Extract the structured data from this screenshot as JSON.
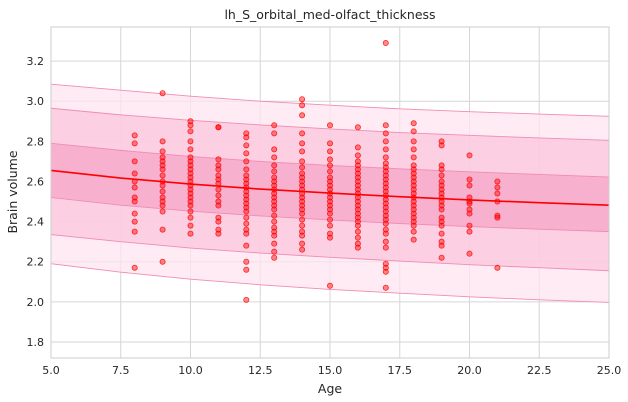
{
  "chart_data": {
    "type": "scatter",
    "title": "lh_S_orbital_med-olfact_thickness",
    "xlabel": "Age",
    "ylabel": "Brain volume",
    "xlim": [
      5.0,
      25.0
    ],
    "ylim": [
      1.72,
      3.37
    ],
    "x_ticks": [
      5.0,
      7.5,
      10.0,
      12.5,
      15.0,
      17.5,
      20.0,
      22.5,
      25.0
    ],
    "x_tick_labels": [
      "5.0",
      "7.5",
      "10.0",
      "12.5",
      "15.0",
      "17.5",
      "20.0",
      "22.5",
      "25.0"
    ],
    "y_ticks": [
      1.8,
      2.0,
      2.2,
      2.4,
      2.6,
      2.8,
      3.0,
      3.2
    ],
    "y_tick_labels": [
      "1.8",
      "2.0",
      "2.2",
      "2.4",
      "2.6",
      "2.8",
      "3.0",
      "3.2"
    ],
    "grid": true,
    "colors": {
      "points": "#ff0000",
      "fit_line": "#ff0000",
      "band_inner": "#f7a6c8",
      "band_middle": "#fbc6dc",
      "band_outer": "#fde4ef",
      "band_edge": "#f08cb4",
      "grid": "#d6d6d6"
    },
    "fit_line": {
      "x": [
        5,
        7.5,
        10,
        12.5,
        15,
        17.5,
        20,
        22.5,
        25
      ],
      "y": [
        2.655,
        2.617,
        2.587,
        2.562,
        2.542,
        2.524,
        2.508,
        2.494,
        2.482
      ]
    },
    "bands": [
      {
        "level": "outer",
        "x": [
          5,
          7.5,
          10,
          12.5,
          15,
          17.5,
          20,
          22.5,
          25
        ],
        "lower": [
          2.19,
          2.148,
          2.113,
          2.085,
          2.062,
          2.043,
          2.025,
          2.01,
          1.997
        ],
        "upper": [
          3.085,
          3.055,
          3.025,
          3.0,
          2.98,
          2.962,
          2.948,
          2.936,
          2.925
        ]
      },
      {
        "level": "middle",
        "x": [
          5,
          7.5,
          10,
          12.5,
          15,
          17.5,
          20,
          22.5,
          25
        ],
        "lower": [
          2.335,
          2.3,
          2.268,
          2.243,
          2.222,
          2.203,
          2.185,
          2.17,
          2.155
        ],
        "upper": [
          2.965,
          2.932,
          2.905,
          2.882,
          2.862,
          2.844,
          2.83,
          2.817,
          2.805
        ]
      },
      {
        "level": "inner",
        "x": [
          5,
          7.5,
          10,
          12.5,
          15,
          17.5,
          20,
          22.5,
          25
        ],
        "lower": [
          2.52,
          2.482,
          2.452,
          2.428,
          2.408,
          2.39,
          2.375,
          2.362,
          2.35
        ],
        "upper": [
          2.79,
          2.755,
          2.725,
          2.7,
          2.68,
          2.663,
          2.648,
          2.635,
          2.622
        ]
      }
    ],
    "points": [
      [
        8,
        2.83
      ],
      [
        8,
        2.79
      ],
      [
        8,
        2.7
      ],
      [
        8,
        2.64
      ],
      [
        8,
        2.6
      ],
      [
        8,
        2.57
      ],
      [
        8,
        2.52
      ],
      [
        8,
        2.5
      ],
      [
        8,
        2.44
      ],
      [
        8,
        2.4
      ],
      [
        8,
        2.35
      ],
      [
        8,
        2.17
      ],
      [
        9,
        3.04
      ],
      [
        9,
        2.8
      ],
      [
        9,
        2.75
      ],
      [
        9,
        2.72
      ],
      [
        9,
        2.7
      ],
      [
        9,
        2.68
      ],
      [
        9,
        2.66
      ],
      [
        9,
        2.63
      ],
      [
        9,
        2.6
      ],
      [
        9,
        2.58
      ],
      [
        9,
        2.55
      ],
      [
        9,
        2.52
      ],
      [
        9,
        2.5
      ],
      [
        9,
        2.48
      ],
      [
        9,
        2.45
      ],
      [
        9,
        2.36
      ],
      [
        9,
        2.2
      ],
      [
        10,
        2.9
      ],
      [
        10,
        2.88
      ],
      [
        10,
        2.85
      ],
      [
        10,
        2.8
      ],
      [
        10,
        2.76
      ],
      [
        10,
        2.72
      ],
      [
        10,
        2.7
      ],
      [
        10,
        2.68
      ],
      [
        10,
        2.66
      ],
      [
        10,
        2.64
      ],
      [
        10,
        2.62
      ],
      [
        10,
        2.6
      ],
      [
        10,
        2.58
      ],
      [
        10,
        2.56
      ],
      [
        10,
        2.54
      ],
      [
        10,
        2.52
      ],
      [
        10,
        2.5
      ],
      [
        10,
        2.48
      ],
      [
        10,
        2.45
      ],
      [
        10,
        2.42
      ],
      [
        10,
        2.38
      ],
      [
        10,
        2.34
      ],
      [
        11,
        2.87
      ],
      [
        11,
        2.87
      ],
      [
        11,
        2.71
      ],
      [
        11,
        2.68
      ],
      [
        11,
        2.66
      ],
      [
        11,
        2.63
      ],
      [
        11,
        2.61
      ],
      [
        11,
        2.59
      ],
      [
        11,
        2.56
      ],
      [
        11,
        2.53
      ],
      [
        11,
        2.5
      ],
      [
        11,
        2.48
      ],
      [
        11,
        2.42
      ],
      [
        11,
        2.4
      ],
      [
        11,
        2.36
      ],
      [
        11,
        2.34
      ],
      [
        12,
        2.84
      ],
      [
        12,
        2.82
      ],
      [
        12,
        2.78
      ],
      [
        12,
        2.74
      ],
      [
        12,
        2.7
      ],
      [
        12,
        2.66
      ],
      [
        12,
        2.63
      ],
      [
        12,
        2.61
      ],
      [
        12,
        2.59
      ],
      [
        12,
        2.57
      ],
      [
        12,
        2.55
      ],
      [
        12,
        2.53
      ],
      [
        12,
        2.51
      ],
      [
        12,
        2.49
      ],
      [
        12,
        2.47
      ],
      [
        12,
        2.45
      ],
      [
        12,
        2.42
      ],
      [
        12,
        2.39
      ],
      [
        12,
        2.36
      ],
      [
        12,
        2.34
      ],
      [
        12,
        2.28
      ],
      [
        12,
        2.2
      ],
      [
        12,
        2.16
      ],
      [
        12,
        2.01
      ],
      [
        13,
        2.88
      ],
      [
        13,
        2.84
      ],
      [
        13,
        2.76
      ],
      [
        13,
        2.72
      ],
      [
        13,
        2.68
      ],
      [
        13,
        2.65
      ],
      [
        13,
        2.62
      ],
      [
        13,
        2.6
      ],
      [
        13,
        2.58
      ],
      [
        13,
        2.56
      ],
      [
        13,
        2.54
      ],
      [
        13,
        2.52
      ],
      [
        13,
        2.5
      ],
      [
        13,
        2.48
      ],
      [
        13,
        2.46
      ],
      [
        13,
        2.43
      ],
      [
        13,
        2.4
      ],
      [
        13,
        2.37
      ],
      [
        13,
        2.35
      ],
      [
        13,
        2.33
      ],
      [
        13,
        2.29
      ],
      [
        13,
        2.25
      ],
      [
        13,
        2.22
      ],
      [
        14,
        3.01
      ],
      [
        14,
        2.98
      ],
      [
        14,
        2.93
      ],
      [
        14,
        2.84
      ],
      [
        14,
        2.79
      ],
      [
        14,
        2.75
      ],
      [
        14,
        2.7
      ],
      [
        14,
        2.67
      ],
      [
        14,
        2.64
      ],
      [
        14,
        2.62
      ],
      [
        14,
        2.6
      ],
      [
        14,
        2.58
      ],
      [
        14,
        2.56
      ],
      [
        14,
        2.54
      ],
      [
        14,
        2.52
      ],
      [
        14,
        2.5
      ],
      [
        14,
        2.48
      ],
      [
        14,
        2.46
      ],
      [
        14,
        2.44
      ],
      [
        14,
        2.41
      ],
      [
        14,
        2.38
      ],
      [
        14,
        2.35
      ],
      [
        14,
        2.33
      ],
      [
        14,
        2.29
      ],
      [
        14,
        2.26
      ],
      [
        15,
        2.88
      ],
      [
        15,
        2.79
      ],
      [
        15,
        2.75
      ],
      [
        15,
        2.71
      ],
      [
        15,
        2.68
      ],
      [
        15,
        2.65
      ],
      [
        15,
        2.62
      ],
      [
        15,
        2.6
      ],
      [
        15,
        2.58
      ],
      [
        15,
        2.56
      ],
      [
        15,
        2.54
      ],
      [
        15,
        2.52
      ],
      [
        15,
        2.5
      ],
      [
        15,
        2.48
      ],
      [
        15,
        2.46
      ],
      [
        15,
        2.44
      ],
      [
        15,
        2.41
      ],
      [
        15,
        2.38
      ],
      [
        15,
        2.34
      ],
      [
        15,
        2.32
      ],
      [
        15,
        2.08
      ],
      [
        16,
        2.87
      ],
      [
        16,
        2.77
      ],
      [
        16,
        2.73
      ],
      [
        16,
        2.7
      ],
      [
        16,
        2.68
      ],
      [
        16,
        2.66
      ],
      [
        16,
        2.64
      ],
      [
        16,
        2.62
      ],
      [
        16,
        2.6
      ],
      [
        16,
        2.58
      ],
      [
        16,
        2.56
      ],
      [
        16,
        2.54
      ],
      [
        16,
        2.52
      ],
      [
        16,
        2.5
      ],
      [
        16,
        2.48
      ],
      [
        16,
        2.46
      ],
      [
        16,
        2.44
      ],
      [
        16,
        2.42
      ],
      [
        16,
        2.4
      ],
      [
        16,
        2.38
      ],
      [
        16,
        2.35
      ],
      [
        16,
        2.32
      ],
      [
        16,
        2.29
      ],
      [
        16,
        2.27
      ],
      [
        17,
        3.29
      ],
      [
        17,
        2.88
      ],
      [
        17,
        2.84
      ],
      [
        17,
        2.8
      ],
      [
        17,
        2.76
      ],
      [
        17,
        2.72
      ],
      [
        17,
        2.69
      ],
      [
        17,
        2.67
      ],
      [
        17,
        2.65
      ],
      [
        17,
        2.63
      ],
      [
        17,
        2.61
      ],
      [
        17,
        2.59
      ],
      [
        17,
        2.57
      ],
      [
        17,
        2.55
      ],
      [
        17,
        2.53
      ],
      [
        17,
        2.51
      ],
      [
        17,
        2.49
      ],
      [
        17,
        2.47
      ],
      [
        17,
        2.45
      ],
      [
        17,
        2.43
      ],
      [
        17,
        2.41
      ],
      [
        17,
        2.39
      ],
      [
        17,
        2.36
      ],
      [
        17,
        2.34
      ],
      [
        17,
        2.3
      ],
      [
        17,
        2.27
      ],
      [
        17,
        2.19
      ],
      [
        17,
        2.17
      ],
      [
        17,
        2.15
      ],
      [
        17,
        2.07
      ],
      [
        18,
        2.89
      ],
      [
        18,
        2.85
      ],
      [
        18,
        2.8
      ],
      [
        18,
        2.76
      ],
      [
        18,
        2.72
      ],
      [
        18,
        2.68
      ],
      [
        18,
        2.66
      ],
      [
        18,
        2.64
      ],
      [
        18,
        2.62
      ],
      [
        18,
        2.6
      ],
      [
        18,
        2.58
      ],
      [
        18,
        2.56
      ],
      [
        18,
        2.54
      ],
      [
        18,
        2.52
      ],
      [
        18,
        2.5
      ],
      [
        18,
        2.48
      ],
      [
        18,
        2.46
      ],
      [
        18,
        2.44
      ],
      [
        18,
        2.42
      ],
      [
        18,
        2.4
      ],
      [
        18,
        2.38
      ],
      [
        18,
        2.35
      ],
      [
        18,
        2.31
      ],
      [
        19,
        2.8
      ],
      [
        19,
        2.78
      ],
      [
        19,
        2.68
      ],
      [
        19,
        2.66
      ],
      [
        19,
        2.63
      ],
      [
        19,
        2.6
      ],
      [
        19,
        2.58
      ],
      [
        19,
        2.56
      ],
      [
        19,
        2.54
      ],
      [
        19,
        2.52
      ],
      [
        19,
        2.5
      ],
      [
        19,
        2.48
      ],
      [
        19,
        2.46
      ],
      [
        19,
        2.42
      ],
      [
        19,
        2.4
      ],
      [
        19,
        2.38
      ],
      [
        19,
        2.34
      ],
      [
        19,
        2.3
      ],
      [
        19,
        2.28
      ],
      [
        19,
        2.22
      ],
      [
        20,
        2.73
      ],
      [
        20,
        2.61
      ],
      [
        20,
        2.58
      ],
      [
        20,
        2.52
      ],
      [
        20,
        2.5
      ],
      [
        20,
        2.49
      ],
      [
        20,
        2.46
      ],
      [
        20,
        2.44
      ],
      [
        20,
        2.38
      ],
      [
        20,
        2.35
      ],
      [
        20,
        2.24
      ],
      [
        21,
        2.6
      ],
      [
        21,
        2.57
      ],
      [
        21,
        2.54
      ],
      [
        21,
        2.5
      ],
      [
        21,
        2.43
      ],
      [
        21,
        2.42
      ],
      [
        21,
        2.17
      ]
    ]
  }
}
